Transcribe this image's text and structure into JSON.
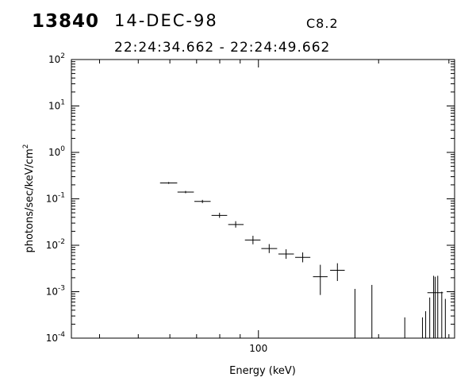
{
  "header": {
    "event_id": "13840",
    "date": "14-DEC-98",
    "goes_class": "C8.2",
    "time_range": "22:24:34.662 - 22:24:49.662"
  },
  "chart_data": {
    "type": "scatter",
    "title": "",
    "xlabel": "Energy (keV)",
    "ylabel": "photons/sec/keV/cm",
    "ylabel_superscript": "2",
    "x_scale": "log",
    "y_scale": "log",
    "xlim": [
      34,
      310
    ],
    "ylim": [
      0.0001,
      100
    ],
    "x_tick_labels": [
      {
        "value": 100,
        "label": "100"
      }
    ],
    "y_tick_labels": [
      {
        "value": 100,
        "base": "10",
        "exp": "2"
      },
      {
        "value": 10,
        "base": "10",
        "exp": "1"
      },
      {
        "value": 1,
        "base": "10",
        "exp": "0"
      },
      {
        "value": 0.1,
        "base": "10",
        "exp": "-1"
      },
      {
        "value": 0.01,
        "base": "10",
        "exp": "-2"
      },
      {
        "value": 0.001,
        "base": "10",
        "exp": "-3"
      },
      {
        "value": 0.0001,
        "base": "10",
        "exp": "-4"
      }
    ],
    "grid": false,
    "legend": "none",
    "series": [
      {
        "points": [
          {
            "x": 59.6,
            "xlo": 56.7,
            "xhi": 62.6,
            "y": 0.22,
            "ylo": 0.21,
            "yhi": 0.23
          },
          {
            "x": 65.7,
            "xlo": 62.7,
            "xhi": 68.9,
            "y": 0.14,
            "ylo": 0.132,
            "yhi": 0.148
          },
          {
            "x": 72.4,
            "xlo": 69.1,
            "xhi": 75.9,
            "y": 0.088,
            "ylo": 0.081,
            "yhi": 0.095
          },
          {
            "x": 79.9,
            "xlo": 76.3,
            "xhi": 83.5,
            "y": 0.044,
            "ylo": 0.039,
            "yhi": 0.05
          },
          {
            "x": 87.7,
            "xlo": 84.0,
            "xhi": 91.8,
            "y": 0.028,
            "ylo": 0.024,
            "yhi": 0.033
          },
          {
            "x": 96.9,
            "xlo": 92.5,
            "xhi": 101.2,
            "y": 0.013,
            "ylo": 0.0105,
            "yhi": 0.016
          },
          {
            "x": 106.4,
            "xlo": 101.7,
            "xhi": 111.4,
            "y": 0.0085,
            "ylo": 0.0068,
            "yhi": 0.0106
          },
          {
            "x": 117.3,
            "xlo": 112.2,
            "xhi": 122.7,
            "y": 0.0065,
            "ylo": 0.0051,
            "yhi": 0.0082
          },
          {
            "x": 129.1,
            "xlo": 123.6,
            "xhi": 134.9,
            "y": 0.0055,
            "ylo": 0.0043,
            "yhi": 0.007
          },
          {
            "x": 142.9,
            "xlo": 137.0,
            "xhi": 149.0,
            "y": 0.0021,
            "ylo": 0.00085,
            "yhi": 0.0038
          },
          {
            "x": 157.7,
            "xlo": 151.2,
            "xhi": 164.5,
            "y": 0.0029,
            "ylo": 0.0017,
            "yhi": 0.0041
          },
          {
            "x": 277.2,
            "xlo": 265.0,
            "xhi": 290.0,
            "y": 0.00095,
            "ylo": 0.0001,
            "yhi": 0.0021
          }
        ]
      }
    ],
    "upper_limit_bars": [
      {
        "x": 174.5,
        "y": 0.00115
      },
      {
        "x": 192.4,
        "y": 0.0014
      },
      {
        "x": 232.6,
        "y": 0.00028
      },
      {
        "x": 257.6,
        "y": 0.00028
      },
      {
        "x": 262.4,
        "y": 0.00038
      },
      {
        "x": 268.6,
        "y": 0.00075
      },
      {
        "x": 274.7,
        "y": 0.0022
      },
      {
        "x": 281.3,
        "y": 0.0022
      },
      {
        "x": 287.9,
        "y": 0.001
      },
      {
        "x": 293.9,
        "y": 0.0007
      }
    ]
  }
}
